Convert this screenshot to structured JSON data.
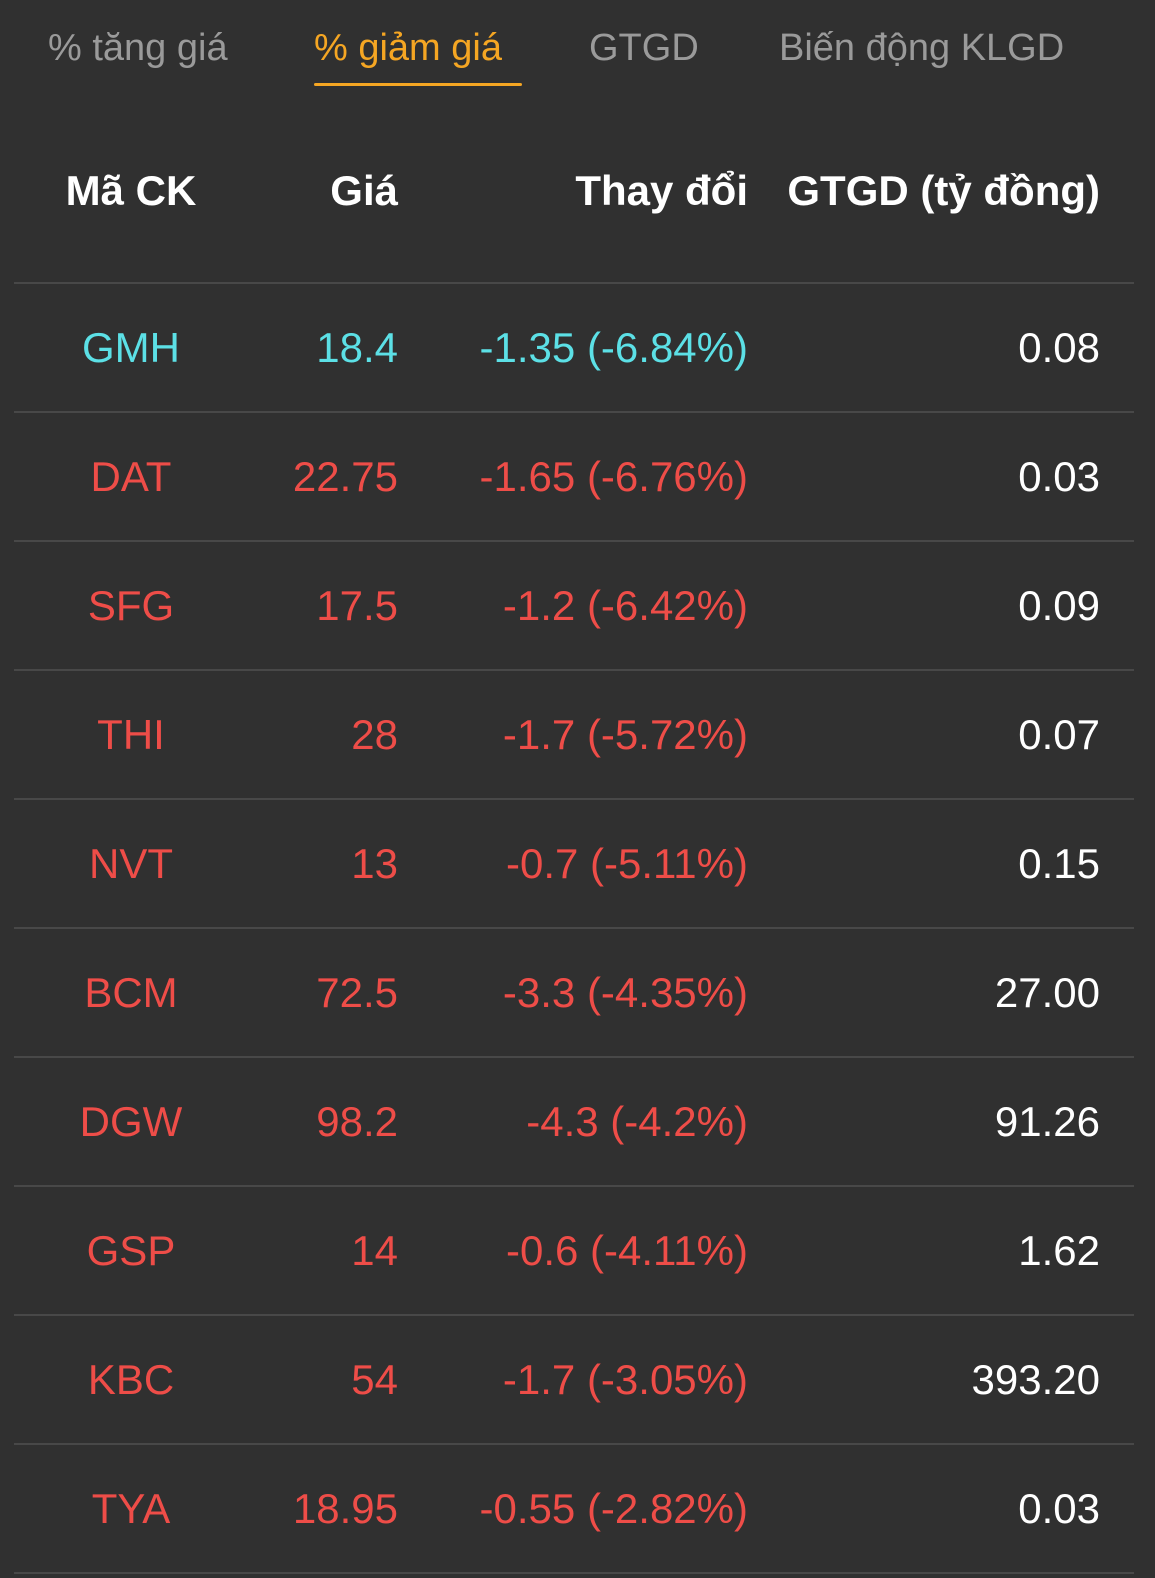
{
  "tabs": [
    {
      "label": "% tăng giá",
      "active": false
    },
    {
      "label": "% giảm giá",
      "active": true
    },
    {
      "label": "GTGD",
      "active": false
    },
    {
      "label": "Biến động KLGD",
      "active": false
    }
  ],
  "colors": {
    "background": "#303030",
    "active_tab": "#f5a623",
    "inactive_tab": "#9a9a9a",
    "floor_price": "#5ce0e6",
    "decrease": "#ee4d48",
    "value_text": "#ffffff"
  },
  "table": {
    "headers": {
      "code": "Mã CK",
      "price": "Giá",
      "change": "Thay đổi",
      "value": "GTGD (tỷ đồng)"
    },
    "rows": [
      {
        "code": "GMH",
        "price": "18.4",
        "change": "-1.35 (-6.84%)",
        "value": "0.08",
        "status": "floor"
      },
      {
        "code": "DAT",
        "price": "22.75",
        "change": "-1.65 (-6.76%)",
        "value": "0.03",
        "status": "down"
      },
      {
        "code": "SFG",
        "price": "17.5",
        "change": "-1.2 (-6.42%)",
        "value": "0.09",
        "status": "down"
      },
      {
        "code": "THI",
        "price": "28",
        "change": "-1.7 (-5.72%)",
        "value": "0.07",
        "status": "down"
      },
      {
        "code": "NVT",
        "price": "13",
        "change": "-0.7 (-5.11%)",
        "value": "0.15",
        "status": "down"
      },
      {
        "code": "BCM",
        "price": "72.5",
        "change": "-3.3 (-4.35%)",
        "value": "27.00",
        "status": "down"
      },
      {
        "code": "DGW",
        "price": "98.2",
        "change": "-4.3 (-4.2%)",
        "value": "91.26",
        "status": "down"
      },
      {
        "code": "GSP",
        "price": "14",
        "change": "-0.6 (-4.11%)",
        "value": "1.62",
        "status": "down"
      },
      {
        "code": "KBC",
        "price": "54",
        "change": "-1.7 (-3.05%)",
        "value": "393.20",
        "status": "down"
      },
      {
        "code": "TYA",
        "price": "18.95",
        "change": "-0.55 (-2.82%)",
        "value": "0.03",
        "status": "down"
      }
    ]
  }
}
